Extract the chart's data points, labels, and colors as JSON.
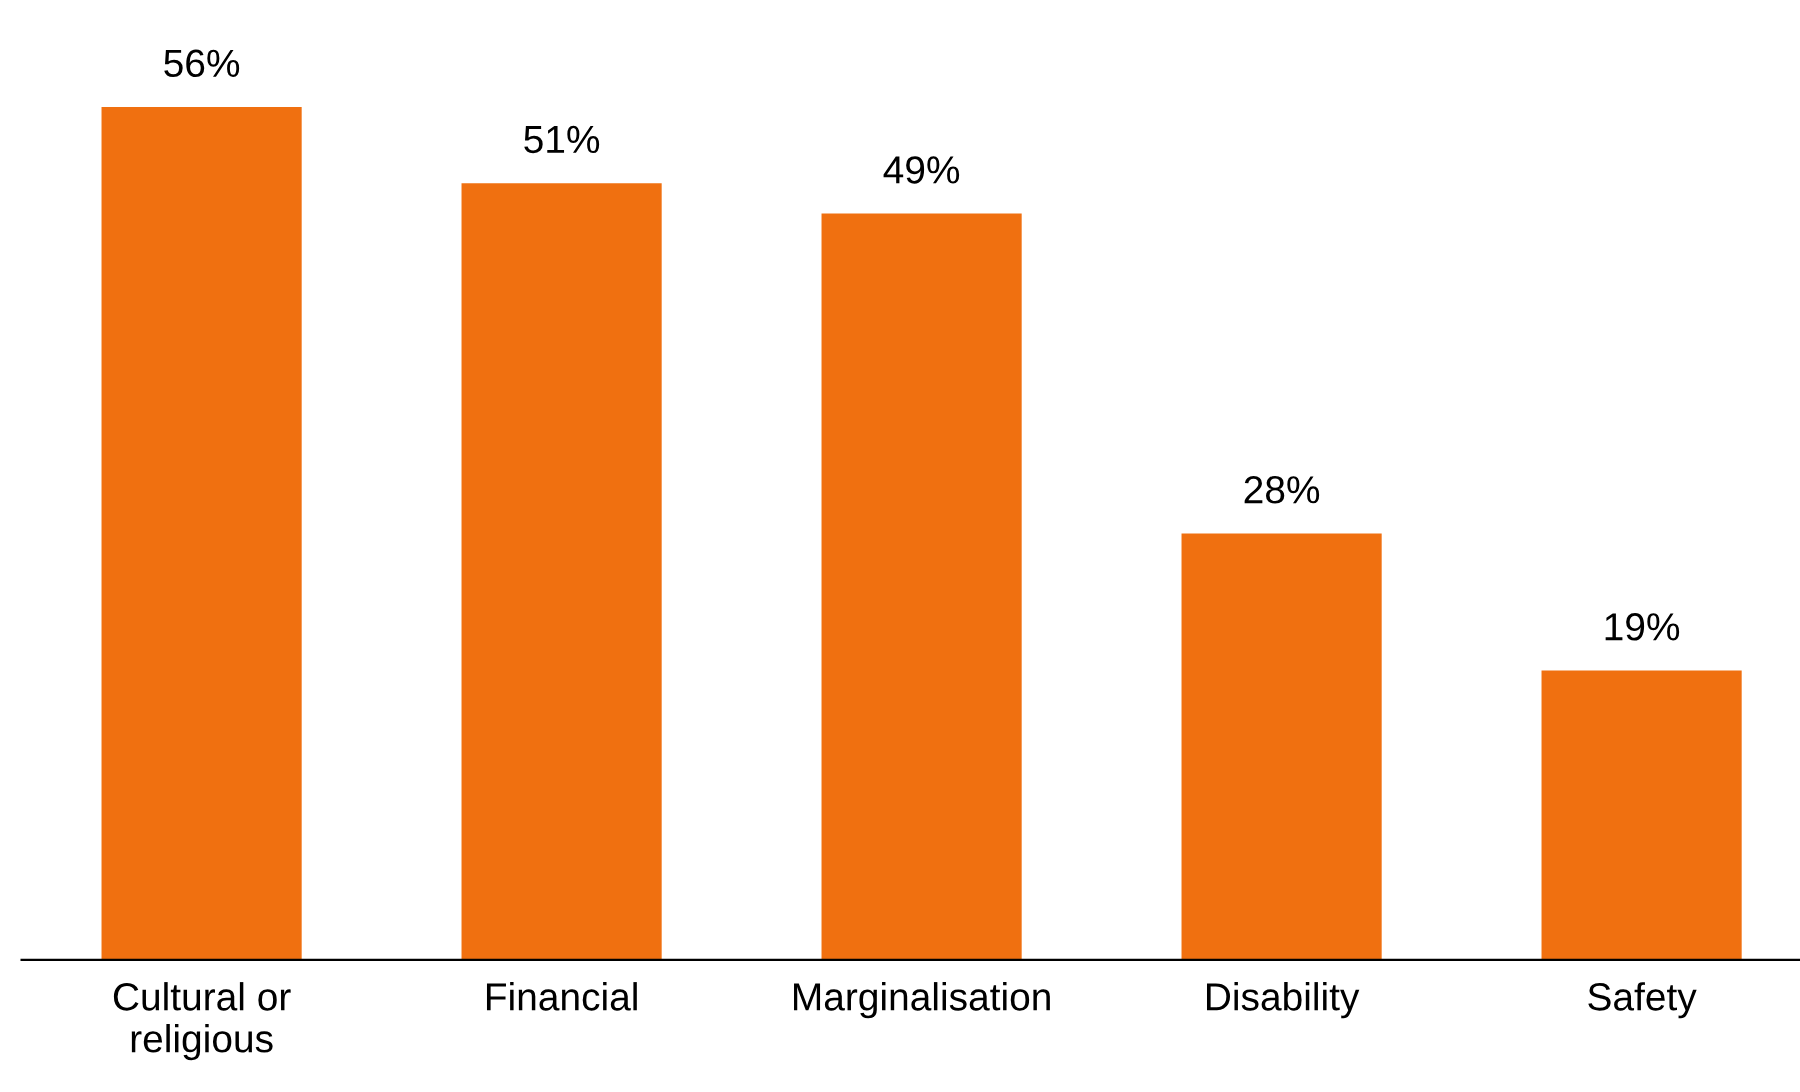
{
  "chart_data": {
    "type": "bar",
    "categories": [
      "Cultural or\nreligious",
      "Financial",
      "Marginalisation",
      "Disability",
      "Safety"
    ],
    "values": [
      56,
      51,
      49,
      28,
      19
    ],
    "value_labels": [
      "56%",
      "51%",
      "49%",
      "28%",
      "19%"
    ],
    "color": "#f07010",
    "grid": false,
    "legend": false,
    "tick_labels": "x"
  }
}
